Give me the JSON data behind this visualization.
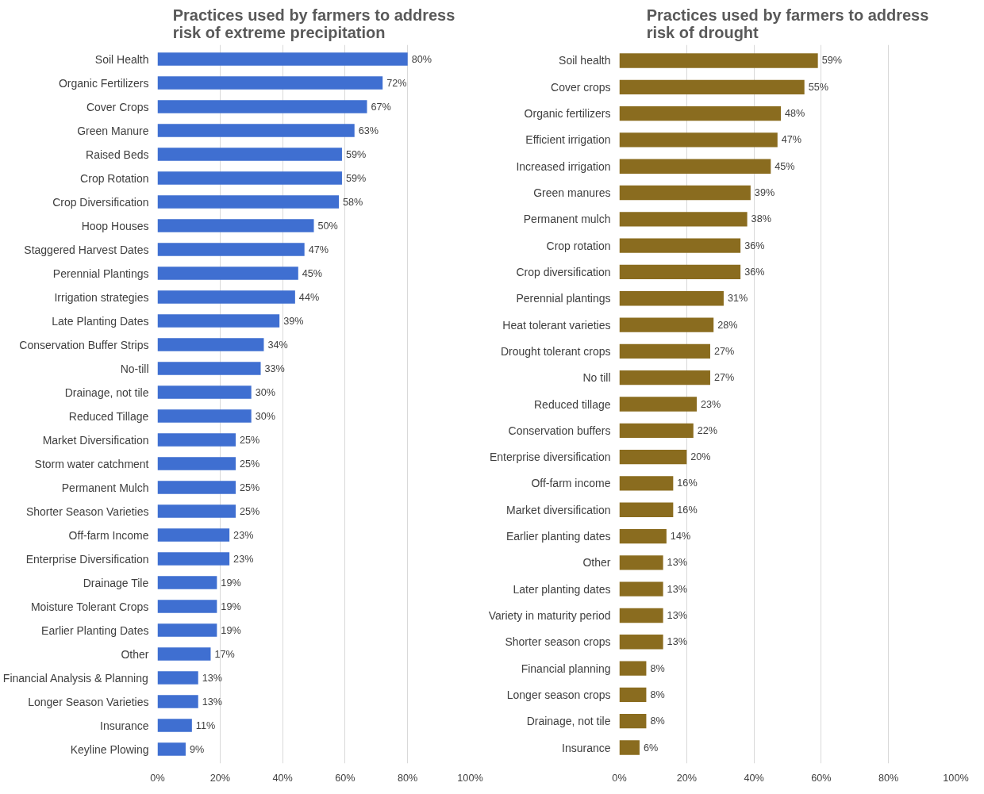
{
  "chart_data": [
    {
      "type": "bar",
      "orientation": "horizontal",
      "title": "Practices used by farmers to address\nrisk of extreme precipitation",
      "categories": [
        "Soil Health",
        "Organic Fertilizers",
        "Cover Crops",
        "Green Manure",
        "Raised Beds",
        "Crop Rotation",
        "Crop Diversification",
        "Hoop Houses",
        "Staggered Harvest Dates",
        "Perennial Plantings",
        "Irrigation strategies",
        "Late Planting Dates",
        "Conservation Buffer Strips",
        "No-till",
        "Drainage, not tile",
        "Reduced Tillage",
        "Market Diversification",
        "Storm water catchment",
        "Permanent Mulch",
        "Shorter Season Varieties",
        "Off-farm Income",
        "Enterprise Diversification",
        "Drainage Tile",
        "Moisture Tolerant Crops",
        "Earlier Planting Dates",
        "Other",
        "Financial Analysis & Planning",
        "Longer Season Varieties",
        "Insurance",
        "Keyline Plowing"
      ],
      "values": [
        80,
        72,
        67,
        63,
        59,
        59,
        58,
        50,
        47,
        45,
        44,
        39,
        34,
        33,
        30,
        30,
        25,
        25,
        25,
        25,
        23,
        23,
        19,
        19,
        19,
        17,
        13,
        13,
        11,
        9
      ],
      "value_labels": [
        "80%",
        "72%",
        "67%",
        "63%",
        "59%",
        "59%",
        "58%",
        "50%",
        "47%",
        "45%",
        "44%",
        "39%",
        "34%",
        "33%",
        "30%",
        "30%",
        "25%",
        "25%",
        "25%",
        "25%",
        "23%",
        "23%",
        "19%",
        "19%",
        "19%",
        "17%",
        "13%",
        "13%",
        "11%",
        "9%"
      ],
      "color": "#3f6fd1",
      "xlim": [
        0,
        100
      ],
      "xticks": [
        {
          "value": 0,
          "label": "0%"
        },
        {
          "value": 20,
          "label": "20%"
        },
        {
          "value": 40,
          "label": "40%"
        },
        {
          "value": 60,
          "label": "60%"
        },
        {
          "value": 80,
          "label": "80%"
        },
        {
          "value": 100,
          "label": "100%"
        }
      ],
      "grid": "x"
    },
    {
      "type": "bar",
      "orientation": "horizontal",
      "title": "Practices used by farmers to address\nrisk of drought",
      "categories": [
        "Soil health",
        "Cover crops",
        "Organic fertilizers",
        "Efficient irrigation",
        "Increased irrigation",
        "Green manures",
        "Permanent mulch",
        "Crop rotation",
        "Crop diversification",
        "Perennial plantings",
        "Heat tolerant varieties",
        "Drought tolerant crops",
        "No till",
        "Reduced tillage",
        "Conservation buffers",
        "Enterprise diversification",
        "Off-farm income",
        "Market diversification",
        "Earlier planting dates",
        "Other",
        "Later planting dates",
        "Variety in maturity period",
        "Shorter season crops",
        "Financial planning",
        "Longer season crops",
        "Drainage, not tile",
        "Insurance"
      ],
      "values": [
        59,
        55,
        48,
        47,
        45,
        39,
        38,
        36,
        36,
        31,
        28,
        27,
        27,
        23,
        22,
        20,
        16,
        16,
        14,
        13,
        13,
        13,
        13,
        8,
        8,
        8,
        6
      ],
      "value_labels": [
        "59%",
        "55%",
        "48%",
        "47%",
        "45%",
        "39%",
        "38%",
        "36%",
        "36%",
        "31%",
        "28%",
        "27%",
        "27%",
        "23%",
        "22%",
        "20%",
        "16%",
        "16%",
        "14%",
        "13%",
        "13%",
        "13%",
        "13%",
        "8%",
        "8%",
        "8%",
        "6%"
      ],
      "color": "#8a6c1f",
      "xlim": [
        0,
        100
      ],
      "xticks": [
        {
          "value": 0,
          "label": "0%"
        },
        {
          "value": 20,
          "label": "20%"
        },
        {
          "value": 40,
          "label": "40%"
        },
        {
          "value": 60,
          "label": "60%"
        },
        {
          "value": 80,
          "label": "80%"
        },
        {
          "value": 100,
          "label": "100%"
        }
      ],
      "grid": "x"
    }
  ]
}
